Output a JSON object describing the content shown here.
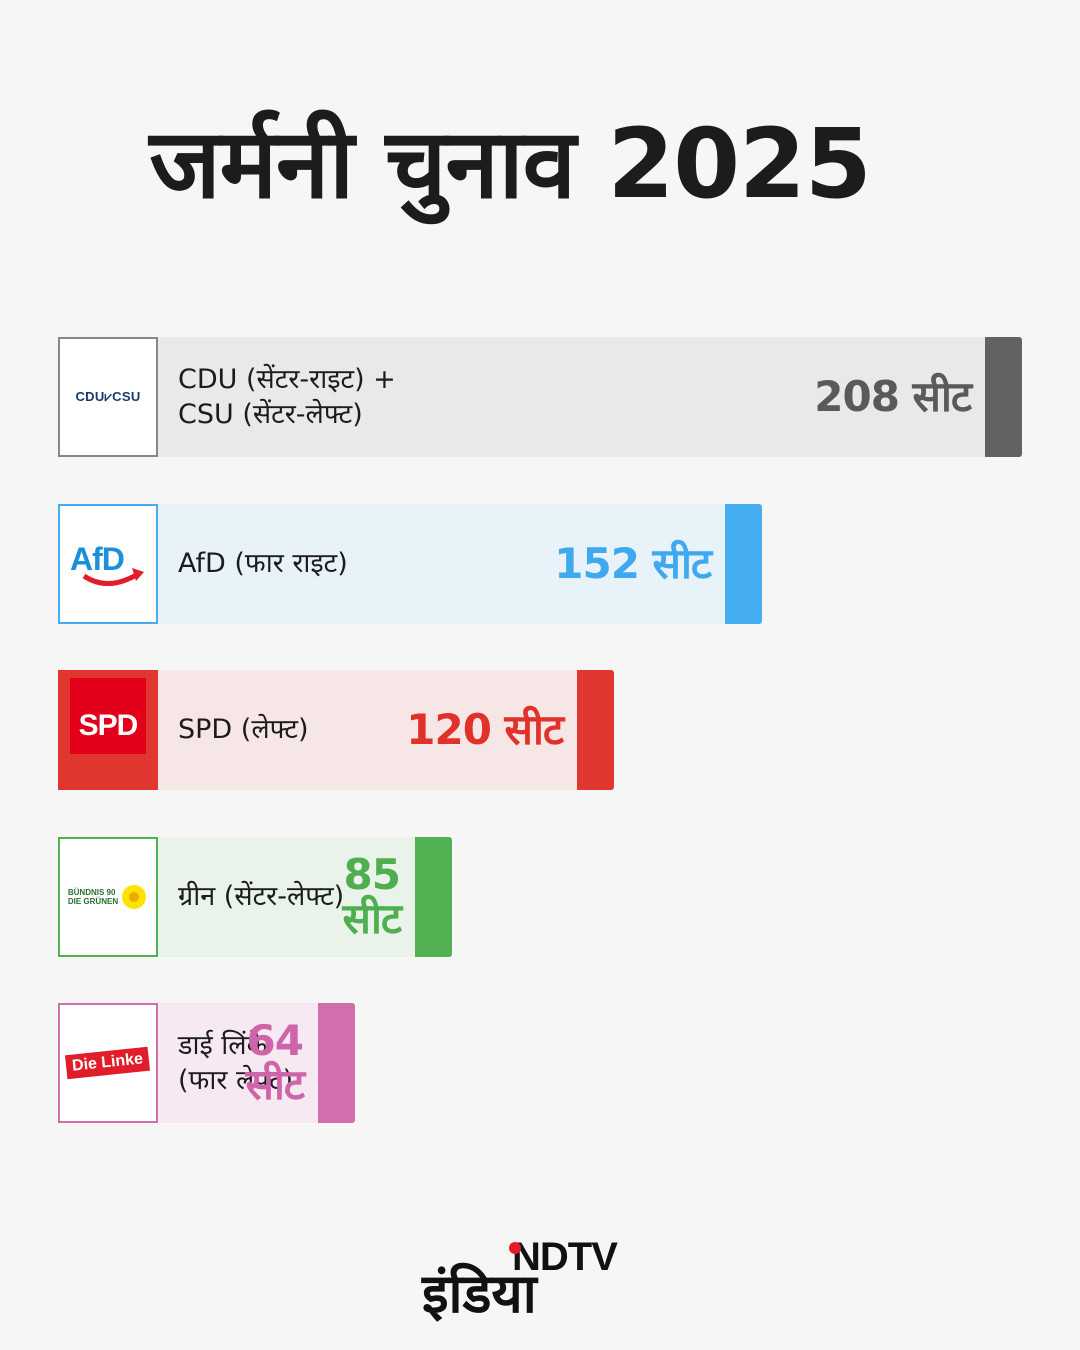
{
  "title": "जर्मनी चुनाव 2025",
  "chart_data": {
    "type": "bar",
    "orientation": "horizontal",
    "unit": "सीट",
    "categories": [
      "CDU + CSU",
      "AfD",
      "SPD",
      "ग्रीन",
      "डाई लिंके"
    ],
    "values": [
      208,
      152,
      120,
      85,
      64
    ],
    "bars": [
      {
        "party_label": "CDU (सेंटर-राइट) +\nCSU (सेंटर-लेफ्ट)",
        "seat_label": "208 सीट",
        "value": 208,
        "logo": "cdu-csu-logo",
        "logo_text": "CDU⩗CSU",
        "color": "#626262",
        "light_color": "#e9e9e9",
        "text_color": "#5a5a5a",
        "border_color": "#888888"
      },
      {
        "party_label": "AfD (फार राइट)",
        "seat_label": "152 सीट",
        "value": 152,
        "logo": "afd-logo",
        "logo_text": "AfD",
        "color": "#45aef0",
        "light_color": "#e7f2f9",
        "text_color": "#3ea9ef",
        "border_color": "#45aef0"
      },
      {
        "party_label": "SPD (लेफ्ट)",
        "seat_label": "120 सीट",
        "value": 120,
        "logo": "spd-logo",
        "logo_text": "SPD",
        "color": "#e23730",
        "light_color": "#f7e6e6",
        "text_color": "#e0312a",
        "border_color": "#e23730"
      },
      {
        "party_label": "ग्रीन (सेंटर-लेफ्ट)",
        "seat_label": "85\nसीट",
        "value": 85,
        "logo": "gruene-logo",
        "logo_text": "BÜNDNIS 90\nDIE GRÜNEN",
        "color": "#52b153",
        "light_color": "#e9f3ea",
        "text_color": "#4fae50",
        "border_color": "#52b153"
      },
      {
        "party_label": "डाई लिंके\n(फार लेफ्ट)",
        "seat_label": "64\nसीट",
        "value": 64,
        "logo": "die-linke-logo",
        "logo_text": "Die Linke",
        "color": "#d06eae",
        "light_color": "#f6e9f2",
        "text_color": "#cf64ab",
        "border_color": "#d06eae"
      }
    ]
  },
  "footer": {
    "brand_top": "NDTV",
    "brand_bottom": "इंडिया"
  }
}
